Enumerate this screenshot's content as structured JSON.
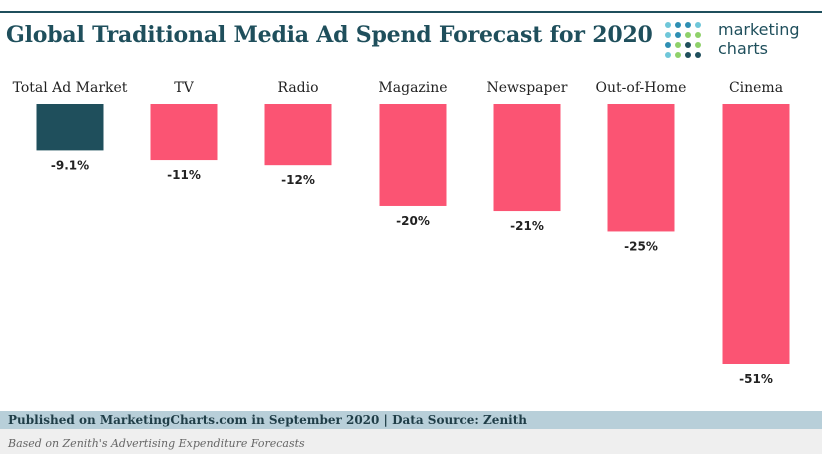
{
  "header": {
    "title": "Global Traditional Media Ad Spend Forecast for 2020"
  },
  "logo": {
    "line1": "marketing",
    "line2": "charts",
    "dot_colors": [
      "#6fc7d9",
      "#2e8fb3",
      "#8fd16a",
      "#1f4f5c"
    ]
  },
  "colors": {
    "highlight": "#1f4f5c",
    "bar": "#fb5473",
    "text": "#1f4f5c"
  },
  "chart_data": {
    "type": "bar",
    "title": "Global Traditional Media Ad Spend Forecast for 2020",
    "categories": [
      "Total Ad Market",
      "TV",
      "Radio",
      "Magazine",
      "Newspaper",
      "Out-of-Home",
      "Cinema"
    ],
    "values": [
      -9.1,
      -11,
      -12,
      -20,
      -21,
      -25,
      -51
    ],
    "labels": [
      "-9.1%",
      "-11%",
      "-12%",
      "-20%",
      "-21%",
      "-25%",
      "-51%"
    ],
    "highlight_index": 0,
    "xlabel": "",
    "ylabel": "",
    "ylim": [
      -51,
      0
    ],
    "grid": false,
    "category_axis": "top"
  },
  "footer": {
    "source": "Published on MarketingCharts.com in September 2020 | Data Source: Zenith",
    "note": "Based on Zenith's Advertising Expenditure Forecasts"
  }
}
